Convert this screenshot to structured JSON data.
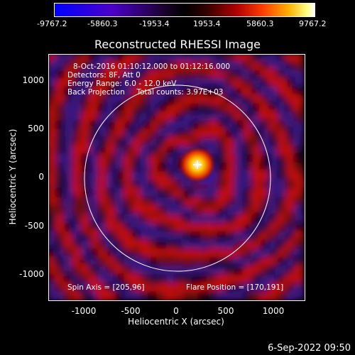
{
  "colorbar": {
    "ticks": [
      "-9767.2",
      "-5860.3",
      "-1953.4",
      "1953.4",
      "5860.3",
      "9767.2"
    ]
  },
  "plot": {
    "title": "Reconstructed RHESSI Image",
    "info_lines": [
      "8-Oct-2016 01:10:12.000 to 01:12:16.000",
      "Detectors: 8F, Att 0",
      "Energy Range: 6.0 - 12.0 keV",
      "Back Projection     Total counts: 3.97E+03"
    ],
    "spin_axis": "Spin Axis = [205,96]",
    "flare_position": "Flare Position = [170,191]",
    "xlabel": "Heliocentric X (arcsec)",
    "ylabel": "Heliocentric Y (arcsec)",
    "xticks": [
      "-1000",
      "-500",
      "0",
      "500",
      "1000"
    ],
    "yticks": [
      "1000",
      "500",
      "0",
      "-500",
      "-1000"
    ]
  },
  "timestamp": "6-Sep-2022 09:50"
}
